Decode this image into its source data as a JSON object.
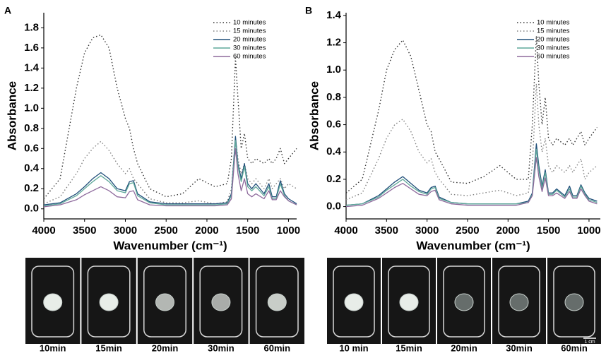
{
  "chart_data": [
    {
      "type": "line",
      "panel_label": "A",
      "x_label": "Wavenumber (cm⁻¹)",
      "y_label": "Absorbance",
      "xlim": [
        4000,
        900
      ],
      "xticks": [
        4000,
        3500,
        3000,
        2500,
        2000,
        1500,
        1000
      ],
      "ylim": [
        -0.1,
        1.95
      ],
      "yticks": [
        {
          "value": 0,
          "label": "0.0"
        },
        0.2,
        0.4,
        0.6,
        0.8,
        {
          "value": 1,
          "label": "1.0"
        },
        1.2,
        1.4,
        1.6,
        1.8
      ],
      "legend": "top-right",
      "x": [
        4000,
        3800,
        3600,
        3500,
        3400,
        3300,
        3200,
        3100,
        3000,
        2950,
        2900,
        2850,
        2700,
        2500,
        2300,
        2100,
        1900,
        1750,
        1700,
        1650,
        1620,
        1580,
        1540,
        1500,
        1450,
        1400,
        1300,
        1240,
        1200,
        1150,
        1100,
        1050,
        1000,
        900
      ],
      "series": [
        {
          "name": "10 minutes",
          "color": "#333333",
          "style": "dotted",
          "values": [
            0.1,
            0.3,
            1.2,
            1.55,
            1.7,
            1.73,
            1.6,
            1.2,
            0.9,
            0.8,
            0.6,
            0.45,
            0.2,
            0.12,
            0.15,
            0.3,
            0.22,
            0.25,
            0.5,
            1.5,
            1.1,
            0.6,
            0.75,
            0.5,
            0.45,
            0.5,
            0.45,
            0.5,
            0.45,
            0.5,
            0.6,
            0.45,
            0.5,
            0.6
          ]
        },
        {
          "name": "15 minutes",
          "color": "#808080",
          "style": "dotted",
          "values": [
            0.05,
            0.12,
            0.35,
            0.5,
            0.6,
            0.67,
            0.58,
            0.45,
            0.35,
            0.4,
            0.3,
            0.25,
            0.1,
            0.06,
            0.06,
            0.08,
            0.05,
            0.07,
            0.2,
            0.7,
            0.5,
            0.35,
            0.45,
            0.3,
            0.25,
            0.3,
            0.2,
            0.3,
            0.2,
            0.25,
            0.3,
            0.2,
            0.25,
            0.2
          ]
        },
        {
          "name": "20 minutes",
          "color": "#1f4e79",
          "style": "solid",
          "values": [
            0.04,
            0.06,
            0.15,
            0.22,
            0.3,
            0.36,
            0.3,
            0.2,
            0.18,
            0.27,
            0.28,
            0.15,
            0.07,
            0.05,
            0.05,
            0.05,
            0.05,
            0.06,
            0.15,
            0.72,
            0.45,
            0.3,
            0.45,
            0.25,
            0.2,
            0.25,
            0.15,
            0.25,
            0.12,
            0.12,
            0.28,
            0.15,
            0.1,
            0.05
          ]
        },
        {
          "name": "30 minutes",
          "color": "#5fa89a",
          "style": "solid",
          "values": [
            0.03,
            0.05,
            0.13,
            0.2,
            0.27,
            0.33,
            0.27,
            0.18,
            0.16,
            0.25,
            0.26,
            0.13,
            0.06,
            0.04,
            0.04,
            0.04,
            0.04,
            0.05,
            0.13,
            0.68,
            0.42,
            0.27,
            0.42,
            0.22,
            0.18,
            0.22,
            0.13,
            0.22,
            0.1,
            0.1,
            0.25,
            0.13,
            0.08,
            0.04
          ]
        },
        {
          "name": "60 minutes",
          "color": "#8e6a9c",
          "style": "solid",
          "values": [
            0.02,
            0.04,
            0.09,
            0.14,
            0.18,
            0.22,
            0.18,
            0.12,
            0.11,
            0.17,
            0.18,
            0.09,
            0.04,
            0.03,
            0.03,
            0.03,
            0.03,
            0.04,
            0.1,
            0.6,
            0.35,
            0.18,
            0.3,
            0.15,
            0.12,
            0.15,
            0.1,
            0.18,
            0.09,
            0.09,
            0.18,
            0.12,
            0.08,
            0.04
          ]
        }
      ]
    },
    {
      "type": "line",
      "panel_label": "B",
      "x_label": "Wavenumber (cm⁻¹)",
      "y_label": "Absorbance",
      "xlim": [
        4000,
        860
      ],
      "xticks": [
        4000,
        3500,
        3000,
        2500,
        2000,
        1500,
        1000
      ],
      "ylim": [
        -0.09,
        1.42
      ],
      "yticks": [
        {
          "value": 0,
          "label": "0.0"
        },
        0.2,
        0.4,
        0.6,
        0.8,
        {
          "value": 1,
          "label": "1.0"
        },
        1.2,
        1.4
      ],
      "legend": "top-right",
      "x": [
        4000,
        3800,
        3600,
        3500,
        3400,
        3300,
        3200,
        3100,
        3000,
        2950,
        2900,
        2850,
        2700,
        2500,
        2300,
        2100,
        1900,
        1750,
        1700,
        1650,
        1620,
        1580,
        1540,
        1500,
        1450,
        1400,
        1300,
        1240,
        1200,
        1150,
        1100,
        1050,
        1000,
        900
      ],
      "series": [
        {
          "name": "10 minutes",
          "color": "#333333",
          "style": "dotted",
          "values": [
            0.1,
            0.2,
            0.7,
            1.0,
            1.15,
            1.22,
            1.1,
            0.85,
            0.6,
            0.55,
            0.4,
            0.35,
            0.18,
            0.17,
            0.22,
            0.3,
            0.2,
            0.2,
            0.6,
            1.25,
            0.9,
            0.6,
            0.8,
            0.5,
            0.45,
            0.5,
            0.45,
            0.5,
            0.45,
            0.5,
            0.55,
            0.45,
            0.5,
            0.58
          ]
        },
        {
          "name": "15 minutes",
          "color": "#808080",
          "style": "dotted",
          "values": [
            0.05,
            0.1,
            0.35,
            0.5,
            0.6,
            0.64,
            0.55,
            0.4,
            0.32,
            0.35,
            0.25,
            0.2,
            0.09,
            0.08,
            0.1,
            0.12,
            0.08,
            0.1,
            0.3,
            0.9,
            0.6,
            0.4,
            0.5,
            0.3,
            0.25,
            0.3,
            0.25,
            0.3,
            0.25,
            0.3,
            0.35,
            0.2,
            0.25,
            0.3
          ]
        },
        {
          "name": "20 minutes",
          "color": "#1f4e79",
          "style": "solid",
          "values": [
            0.01,
            0.02,
            0.08,
            0.13,
            0.18,
            0.22,
            0.17,
            0.12,
            0.1,
            0.14,
            0.15,
            0.07,
            0.03,
            0.02,
            0.02,
            0.02,
            0.02,
            0.04,
            0.1,
            0.46,
            0.3,
            0.15,
            0.27,
            0.1,
            0.1,
            0.13,
            0.08,
            0.15,
            0.08,
            0.08,
            0.16,
            0.1,
            0.06,
            0.04
          ]
        },
        {
          "name": "30 minutes",
          "color": "#5fa89a",
          "style": "solid",
          "values": [
            0.01,
            0.02,
            0.07,
            0.12,
            0.16,
            0.2,
            0.15,
            0.11,
            0.09,
            0.13,
            0.14,
            0.06,
            0.03,
            0.02,
            0.02,
            0.02,
            0.02,
            0.03,
            0.09,
            0.42,
            0.27,
            0.13,
            0.25,
            0.09,
            0.09,
            0.12,
            0.07,
            0.13,
            0.07,
            0.07,
            0.15,
            0.09,
            0.05,
            0.03
          ]
        },
        {
          "name": "60 minutes",
          "color": "#8e6a9c",
          "style": "solid",
          "values": [
            0.0,
            0.01,
            0.06,
            0.1,
            0.14,
            0.17,
            0.13,
            0.09,
            0.08,
            0.11,
            0.12,
            0.05,
            0.02,
            0.01,
            0.01,
            0.01,
            0.01,
            0.03,
            0.08,
            0.36,
            0.22,
            0.11,
            0.21,
            0.08,
            0.08,
            0.1,
            0.06,
            0.11,
            0.06,
            0.06,
            0.13,
            0.08,
            0.04,
            0.02
          ]
        }
      ]
    }
  ],
  "photo_strips": [
    {
      "captions": [
        "10min",
        "15min",
        "20min",
        "30min",
        "60min"
      ]
    },
    {
      "captions": [
        "10 min",
        "15min",
        "20min",
        "30min",
        "60min"
      ],
      "scale_bar": "1 cm"
    }
  ]
}
